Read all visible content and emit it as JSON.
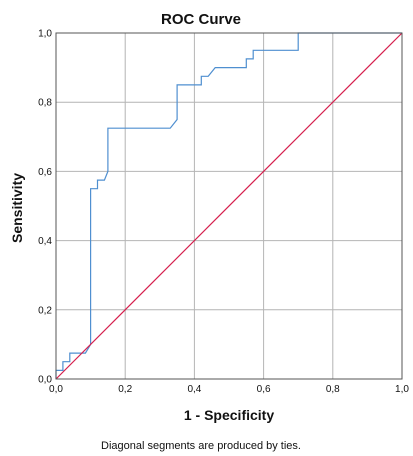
{
  "chart_data": {
    "type": "line",
    "title": "ROC Curve",
    "xlabel": "1 - Specificity",
    "ylabel": "Sensitivity",
    "xlim": [
      0,
      1
    ],
    "ylim": [
      0,
      1
    ],
    "x_ticks": [
      "0,0",
      "0,2",
      "0,4",
      "0,6",
      "0,8",
      "1,0"
    ],
    "y_ticks": [
      "0,0",
      "0,2",
      "0,4",
      "0,6",
      "0,8",
      "1,0"
    ],
    "grid": true,
    "footnote": "Diagonal segments are produced by ties.",
    "series": [
      {
        "color": "#4f8fd0",
        "x": [
          0,
          0,
          0.02,
          0.02,
          0.04,
          0.04,
          0.06,
          0.06,
          0.085,
          0.085,
          0.1,
          0.1,
          0.12,
          0.12,
          0.14,
          0.14,
          0.15,
          0.15,
          0.2,
          0.33,
          0.35,
          0.35,
          0.42,
          0.42,
          0.44,
          0.44,
          0.46,
          0.46,
          0.55,
          0.55,
          0.57,
          0.57,
          0.7,
          0.7,
          1.0
        ],
        "y": [
          0,
          0.025,
          0.025,
          0.05,
          0.05,
          0.075,
          0.075,
          0.075,
          0.075,
          0.075,
          0.1,
          0.55,
          0.55,
          0.575,
          0.575,
          0.575,
          0.6,
          0.725,
          0.725,
          0.725,
          0.75,
          0.85,
          0.85,
          0.875,
          0.875,
          0.875,
          0.9,
          0.9,
          0.9,
          0.925,
          0.925,
          0.95,
          0.95,
          1.0,
          1.0
        ]
      },
      {
        "color": "#d6204e",
        "x": [
          0,
          1
        ],
        "y": [
          0,
          1
        ]
      }
    ]
  }
}
